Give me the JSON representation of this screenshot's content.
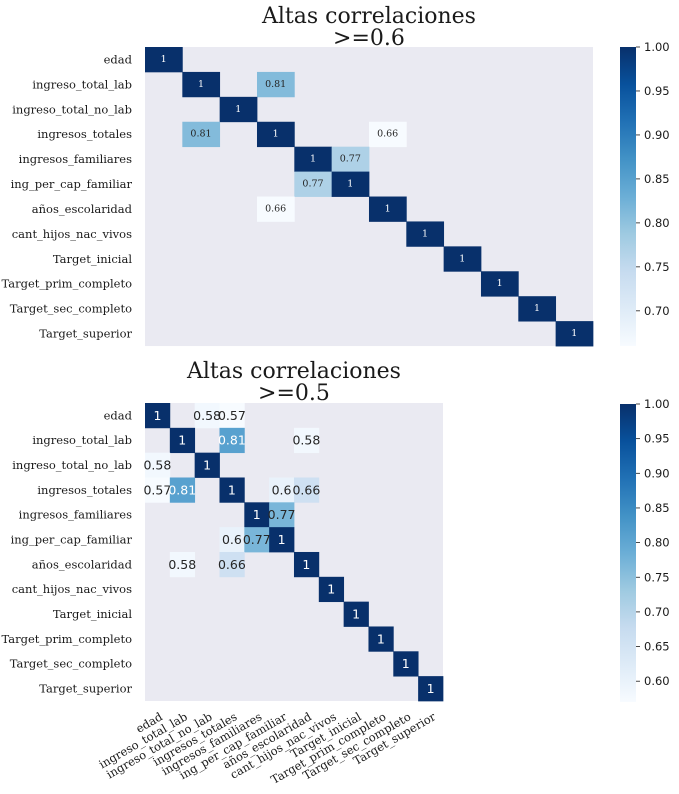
{
  "chart_data": [
    {
      "type": "heatmap",
      "title_lines": [
        "Altas correlaciones",
        ">=0.6"
      ],
      "labels": [
        "edad",
        "ingreso_total_lab",
        "ingreso_total_no_lab",
        "ingresos_totales",
        "ingresos_familiares",
        "ing_per_cap_familiar",
        "años_escolaridad",
        "cant_hijos_nac_vivos",
        "Target_inicial",
        "Target_prim_completo",
        "Target_sec_completo",
        "Target_superior"
      ],
      "show_xlabels": false,
      "colorscale": "Blues",
      "background": "#eaeaf2",
      "vmin": 0.66,
      "vmax": 1.0,
      "colorbar_ticks": [
        "0.70",
        "0.75",
        "0.80",
        "0.85",
        "0.90",
        "0.95",
        "1.00"
      ],
      "annotation_style": "small",
      "cells": [
        {
          "r": 0,
          "c": 0,
          "v": 1,
          "label": "1"
        },
        {
          "r": 1,
          "c": 1,
          "v": 1,
          "label": "1"
        },
        {
          "r": 1,
          "c": 3,
          "v": 0.81,
          "label": "0.81"
        },
        {
          "r": 2,
          "c": 2,
          "v": 1,
          "label": "1"
        },
        {
          "r": 3,
          "c": 1,
          "v": 0.81,
          "label": "0.81"
        },
        {
          "r": 3,
          "c": 3,
          "v": 1,
          "label": "1"
        },
        {
          "r": 3,
          "c": 6,
          "v": 0.66,
          "label": "0.66"
        },
        {
          "r": 4,
          "c": 4,
          "v": 1,
          "label": "1"
        },
        {
          "r": 4,
          "c": 5,
          "v": 0.77,
          "label": "0.77"
        },
        {
          "r": 5,
          "c": 4,
          "v": 0.77,
          "label": "0.77"
        },
        {
          "r": 5,
          "c": 5,
          "v": 1,
          "label": "1"
        },
        {
          "r": 6,
          "c": 3,
          "v": 0.66,
          "label": "0.66"
        },
        {
          "r": 6,
          "c": 6,
          "v": 1,
          "label": "1"
        },
        {
          "r": 7,
          "c": 7,
          "v": 1,
          "label": "1"
        },
        {
          "r": 8,
          "c": 8,
          "v": 1,
          "label": "1"
        },
        {
          "r": 9,
          "c": 9,
          "v": 1,
          "label": "1"
        },
        {
          "r": 10,
          "c": 10,
          "v": 1,
          "label": "1"
        },
        {
          "r": 11,
          "c": 11,
          "v": 1,
          "label": "1"
        }
      ]
    },
    {
      "type": "heatmap",
      "title_lines": [
        "Altas correlaciones",
        ">=0.5"
      ],
      "labels": [
        "edad",
        "ingreso_total_lab",
        "ingreso_total_no_lab",
        "ingresos_totales",
        "ingresos_familiares",
        "ing_per_cap_familiar",
        "años_escolaridad",
        "cant_hijos_nac_vivos",
        "Target_inicial",
        "Target_prim_completo",
        "Target_sec_completo",
        "Target_superior"
      ],
      "show_xlabels": true,
      "colorscale": "Blues",
      "background": "#eaeaf2",
      "vmin": 0.57,
      "vmax": 1.0,
      "colorbar_ticks": [
        "0.60",
        "0.65",
        "0.70",
        "0.75",
        "0.80",
        "0.85",
        "0.90",
        "0.95",
        "1.00"
      ],
      "annotation_style": "big",
      "cells": [
        {
          "r": 0,
          "c": 0,
          "v": 1,
          "label": "1"
        },
        {
          "r": 0,
          "c": 2,
          "v": 0.58,
          "label": "0.58"
        },
        {
          "r": 0,
          "c": 3,
          "v": 0.57,
          "label": "0.57"
        },
        {
          "r": 1,
          "c": 1,
          "v": 1,
          "label": "1"
        },
        {
          "r": 1,
          "c": 3,
          "v": 0.81,
          "label": "0.81"
        },
        {
          "r": 1,
          "c": 6,
          "v": 0.58,
          "label": "0.58"
        },
        {
          "r": 2,
          "c": 0,
          "v": 0.58,
          "label": "0.58"
        },
        {
          "r": 2,
          "c": 2,
          "v": 1,
          "label": "1"
        },
        {
          "r": 3,
          "c": 0,
          "v": 0.57,
          "label": "0.57"
        },
        {
          "r": 3,
          "c": 1,
          "v": 0.81,
          "label": "0.81"
        },
        {
          "r": 3,
          "c": 3,
          "v": 1,
          "label": "1"
        },
        {
          "r": 3,
          "c": 5,
          "v": 0.6,
          "label": "0.6"
        },
        {
          "r": 3,
          "c": 6,
          "v": 0.66,
          "label": "0.66"
        },
        {
          "r": 4,
          "c": 4,
          "v": 1,
          "label": "1"
        },
        {
          "r": 4,
          "c": 5,
          "v": 0.77,
          "label": "0.77"
        },
        {
          "r": 5,
          "c": 3,
          "v": 0.6,
          "label": "0.6"
        },
        {
          "r": 5,
          "c": 4,
          "v": 0.77,
          "label": "0.77"
        },
        {
          "r": 5,
          "c": 5,
          "v": 1,
          "label": "1"
        },
        {
          "r": 6,
          "c": 1,
          "v": 0.58,
          "label": "0.58"
        },
        {
          "r": 6,
          "c": 3,
          "v": 0.66,
          "label": "0.66"
        },
        {
          "r": 6,
          "c": 6,
          "v": 1,
          "label": "1"
        },
        {
          "r": 7,
          "c": 7,
          "v": 1,
          "label": "1"
        },
        {
          "r": 8,
          "c": 8,
          "v": 1,
          "label": "1"
        },
        {
          "r": 9,
          "c": 9,
          "v": 1,
          "label": "1"
        },
        {
          "r": 10,
          "c": 10,
          "v": 1,
          "label": "1"
        },
        {
          "r": 11,
          "c": 11,
          "v": 1,
          "label": "1"
        }
      ]
    }
  ]
}
